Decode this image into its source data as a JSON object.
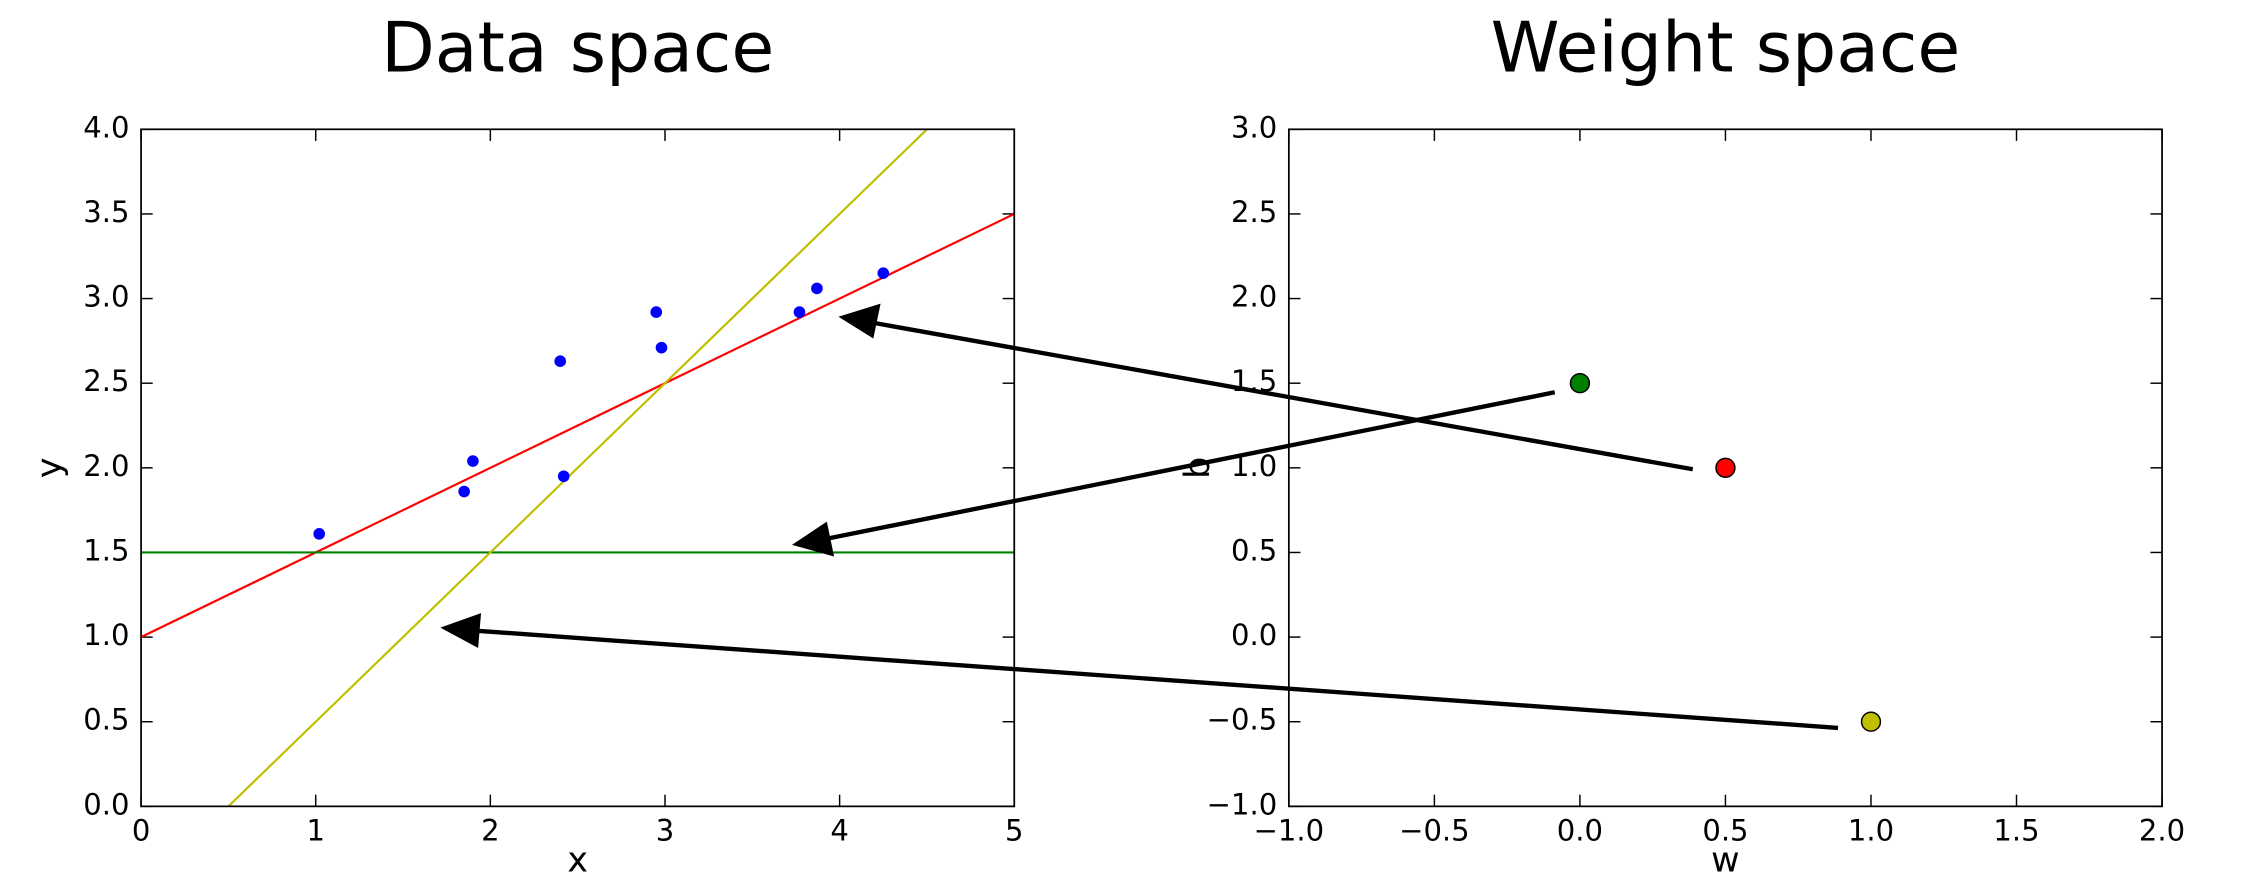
{
  "chart_data": [
    {
      "type": "scatter",
      "title": "Data space",
      "x_label": "x",
      "y_label": "y",
      "xlim": [
        0,
        5
      ],
      "ylim": [
        0,
        4
      ],
      "xticks": [
        0,
        1,
        2,
        3,
        4,
        5
      ],
      "yticks": [
        {
          "value": 0,
          "label": "0.0"
        },
        {
          "value": 0.5,
          "label": "0.5"
        },
        {
          "value": 1,
          "label": "1.0"
        },
        {
          "value": 1.5,
          "label": "1.5"
        },
        {
          "value": 2,
          "label": "2.0"
        },
        {
          "value": 2.5,
          "label": "2.5"
        },
        {
          "value": 3,
          "label": "3.0"
        },
        {
          "value": 3.5,
          "label": "3.5"
        },
        {
          "value": 4,
          "label": "4.0"
        }
      ],
      "series": [
        {
          "color": "#0000ff",
          "x": [
            1.02,
            1.85,
            1.9,
            2.4,
            2.42,
            2.95,
            2.98,
            3.77,
            3.87,
            4.25
          ],
          "values": [
            1.61,
            1.86,
            2.04,
            2.63,
            1.95,
            2.92,
            2.71,
            2.92,
            3.06,
            3.15
          ]
        }
      ],
      "lines": [
        {
          "color": "#ff0000",
          "x": [
            0,
            5
          ],
          "values": [
            1,
            3.5
          ]
        },
        {
          "color": "#008000",
          "x": [
            0,
            5
          ],
          "values": [
            1.5,
            1.5
          ]
        },
        {
          "color": "#bfbf00",
          "x": [
            0.5,
            4.5
          ],
          "values": [
            0,
            4
          ]
        }
      ]
    },
    {
      "type": "scatter",
      "title": "Weight space",
      "x_label": "w",
      "y_label": "b",
      "xlim": [
        -1,
        2
      ],
      "ylim": [
        -1,
        3
      ],
      "xticks": [
        {
          "value": -1,
          "label": "−1.0"
        },
        {
          "value": -0.5,
          "label": "−0.5"
        },
        {
          "value": 0,
          "label": "0.0"
        },
        {
          "value": 0.5,
          "label": "0.5"
        },
        {
          "value": 1,
          "label": "1.0"
        },
        {
          "value": 1.5,
          "label": "1.5"
        },
        {
          "value": 2,
          "label": "2.0"
        }
      ],
      "yticks": [
        {
          "value": -1,
          "label": "−1.0"
        },
        {
          "value": -0.5,
          "label": "−0.5"
        },
        {
          "value": 0,
          "label": "0.0"
        },
        {
          "value": 0.5,
          "label": "0.5"
        },
        {
          "value": 1,
          "label": "1.0"
        },
        {
          "value": 1.5,
          "label": "1.5"
        },
        {
          "value": 2,
          "label": "2.0"
        },
        {
          "value": 2.5,
          "label": "2.5"
        },
        {
          "value": 3,
          "label": "3.0"
        }
      ],
      "series": [
        {
          "color": "#ff0000",
          "x": [
            0.5
          ],
          "values": [
            1
          ]
        },
        {
          "color": "#008000",
          "x": [
            0
          ],
          "values": [
            1.5
          ]
        },
        {
          "color": "#bfbf00",
          "x": [
            1
          ],
          "values": [
            -0.5
          ]
        }
      ]
    }
  ]
}
